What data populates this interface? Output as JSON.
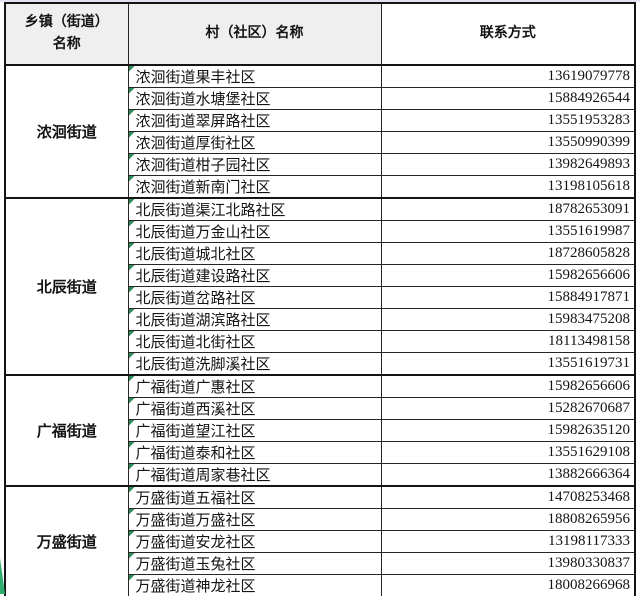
{
  "header": {
    "town_col": "乡镇（街道）\n名称",
    "village_col": "村（社区）名称",
    "contact_col": "联系方式"
  },
  "colors": {
    "header_bg": "#efefef",
    "border": "#141414",
    "error_indicator_green": "#2e8b57",
    "wedge_green": "#2fae6e"
  },
  "groups": [
    {
      "town": "浓洄街道",
      "rows": [
        {
          "village": "浓洄街道果丰社区",
          "phone": "13619079778"
        },
        {
          "village": "浓洄街道水塘堡社区",
          "phone": "15884926544"
        },
        {
          "village": "浓洄街道翠屏路社区",
          "phone": "13551953283"
        },
        {
          "village": "浓洄街道厚街社区",
          "phone": "13550990399"
        },
        {
          "village": "浓洄街道柑子园社区",
          "phone": "13982649893"
        },
        {
          "village": "浓洄街道新南门社区",
          "phone": "13198105618"
        }
      ]
    },
    {
      "town": "北辰街道",
      "rows": [
        {
          "village": "北辰街道渠江北路社区",
          "phone": "18782653091"
        },
        {
          "village": "北辰街道万金山社区",
          "phone": "13551619987"
        },
        {
          "village": "北辰街道城北社区",
          "phone": "18728605828"
        },
        {
          "village": "北辰街道建设路社区",
          "phone": "15982656606"
        },
        {
          "village": "北辰街道岔路社区",
          "phone": "15884917871"
        },
        {
          "village": "北辰街道湖滨路社区",
          "phone": "15983475208"
        },
        {
          "village": "北辰街道北街社区",
          "phone": "18113498158"
        },
        {
          "village": "北辰街道洗脚溪社区",
          "phone": "13551619731"
        }
      ]
    },
    {
      "town": "广福街道",
      "rows": [
        {
          "village": "广福街道广惠社区",
          "phone": "15982656606"
        },
        {
          "village": "广福街道西溪社区",
          "phone": "15282670687"
        },
        {
          "village": "广福街道望江社区",
          "phone": "15982635120"
        },
        {
          "village": "广福街道泰和社区",
          "phone": "13551629108"
        },
        {
          "village": "广福街道周家巷社区",
          "phone": "13882666364"
        }
      ]
    },
    {
      "town": "万盛街道",
      "rows": [
        {
          "village": "万盛街道五福社区",
          "phone": "14708253468"
        },
        {
          "village": "万盛街道万盛社区",
          "phone": "18808265956"
        },
        {
          "village": "万盛街道安龙社区",
          "phone": "13198117333"
        },
        {
          "village": "万盛街道玉兔社区",
          "phone": "13980330837"
        },
        {
          "village": "万盛街道神龙社区",
          "phone": "18008266968"
        }
      ]
    }
  ]
}
